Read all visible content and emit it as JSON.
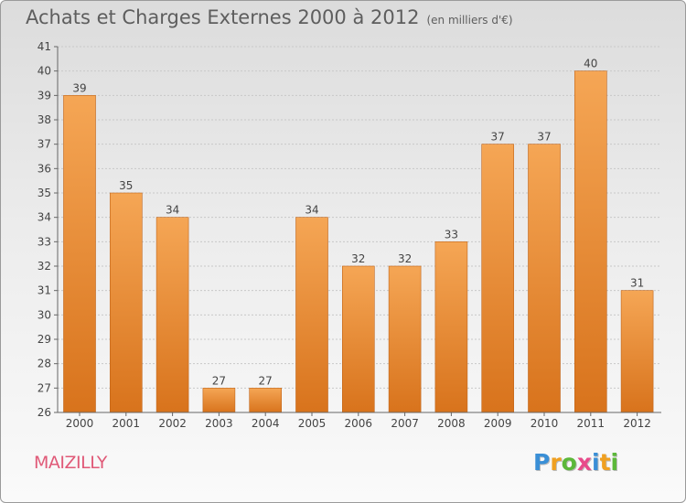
{
  "title": "Achats et Charges Externes 2000 à 2012",
  "unit_note": "(en milliers d'€)",
  "commune": "MAIZILLY",
  "logo": {
    "text": "Proxiti",
    "letters": [
      {
        "ch": "P",
        "color": "#3a8fd6"
      },
      {
        "ch": "r",
        "color": "#f0a020"
      },
      {
        "ch": "o",
        "color": "#5cb83a"
      },
      {
        "ch": "x",
        "color": "#e84a8a"
      },
      {
        "ch": "i",
        "color": "#3a8fd6"
      },
      {
        "ch": "t",
        "color": "#f0a020"
      },
      {
        "ch": "i",
        "color": "#5cb83a"
      }
    ]
  },
  "colors": {
    "bar_top": "#f5a655",
    "bar_bottom": "#d8731c",
    "bar_edge": "#c0651a",
    "axis": "#666666",
    "grid": "#c8c8c8",
    "text": "#444444"
  },
  "chart_data": {
    "type": "bar",
    "categories": [
      "2000",
      "2001",
      "2002",
      "2003",
      "2004",
      "2005",
      "2006",
      "2007",
      "2008",
      "2009",
      "2010",
      "2011",
      "2012"
    ],
    "values": [
      39,
      35,
      34,
      27,
      27,
      34,
      32,
      32,
      33,
      37,
      37,
      40,
      31
    ],
    "ylim": [
      26,
      41
    ],
    "yticks": [
      26,
      27,
      28,
      29,
      30,
      31,
      32,
      33,
      34,
      35,
      36,
      37,
      38,
      39,
      40,
      41
    ],
    "grid": true,
    "data_labels": true
  }
}
